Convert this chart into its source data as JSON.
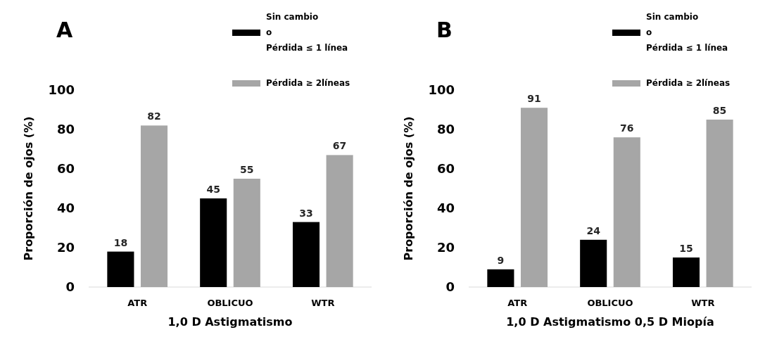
{
  "chart_data": [
    {
      "type": "bar",
      "title": "A",
      "xlabel": "1,0 D Astigmatismo",
      "ylabel": "Proporción de ojos (%)",
      "categories": [
        "ATR",
        "OBLICUO",
        "WTR"
      ],
      "series": [
        {
          "name": "Sin cambio\no\nPérdida ≤ 1 línea",
          "color": "#000000",
          "values": [
            18,
            45,
            33
          ]
        },
        {
          "name": "Pérdida ≥ 2líneas",
          "color": "#a6a6a6",
          "values": [
            82,
            55,
            67
          ]
        }
      ],
      "ylim": [
        0,
        100
      ],
      "yticks": [
        0,
        20,
        40,
        60,
        80,
        100
      ],
      "grid": false,
      "legend": "top",
      "data_labels": true
    },
    {
      "type": "bar",
      "title": "B",
      "xlabel": "1,0 D Astigmatismo  0,5 D Miopía",
      "ylabel": "Proporción de ojos (%)",
      "categories": [
        "ATR",
        "OBLICUO",
        "WTR"
      ],
      "series": [
        {
          "name": "Sin cambio\no\nPérdida ≤ 1 línea",
          "color": "#000000",
          "values": [
            9,
            24,
            15
          ]
        },
        {
          "name": "Pérdida ≥ 2líneas",
          "color": "#a6a6a6",
          "values": [
            91,
            76,
            85
          ]
        }
      ],
      "ylim": [
        0,
        100
      ],
      "yticks": [
        0,
        20,
        40,
        60,
        80,
        100
      ],
      "grid": false,
      "legend": "top",
      "data_labels": true
    }
  ]
}
